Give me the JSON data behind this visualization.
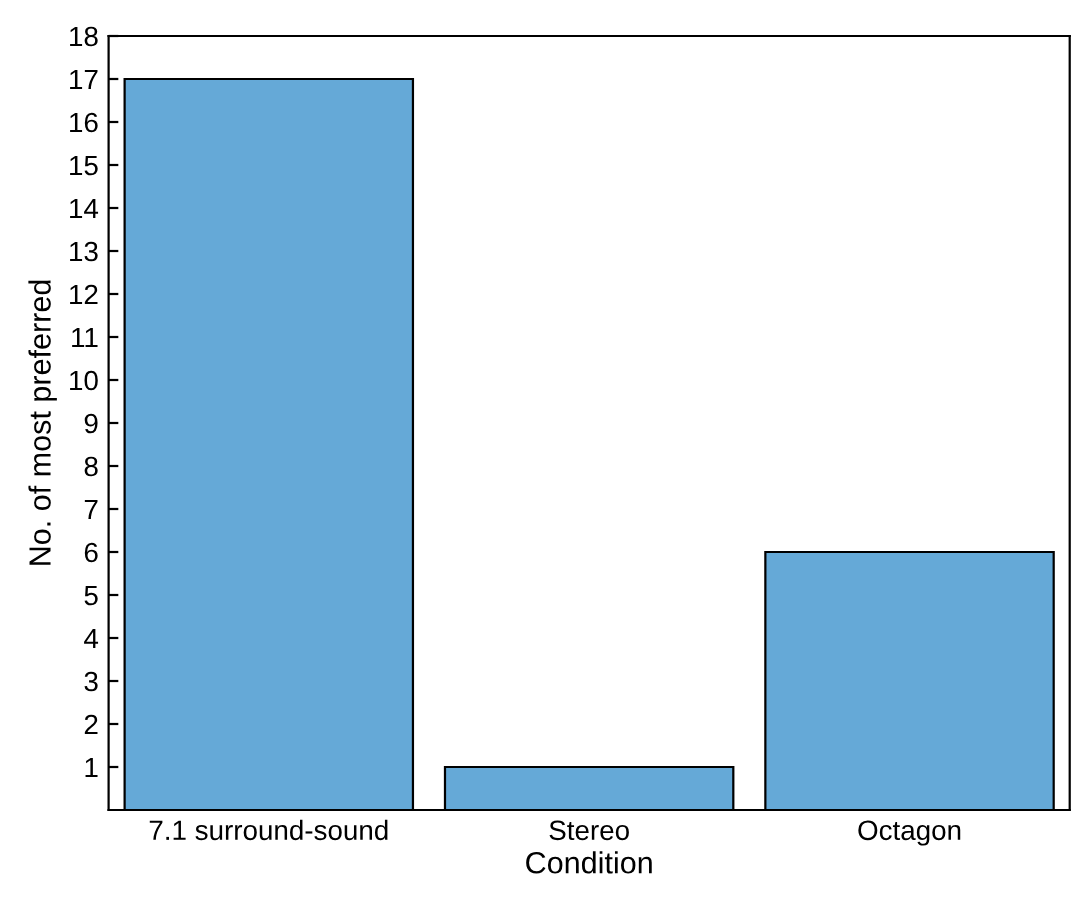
{
  "chart_data": {
    "type": "bar",
    "xlabel": "Condition",
    "ylabel": "No. of most preferred",
    "categories": [
      "7.1 surround-sound",
      "Stereo",
      "Octagon"
    ],
    "values": [
      17,
      1,
      6
    ],
    "color": "#65a9d7",
    "ylim": [
      0,
      18
    ],
    "yticks": [
      1,
      2,
      3,
      4,
      5,
      6,
      7,
      8,
      9,
      10,
      11,
      12,
      13,
      14,
      15,
      16,
      17,
      18
    ],
    "grid": false,
    "legend": false
  }
}
